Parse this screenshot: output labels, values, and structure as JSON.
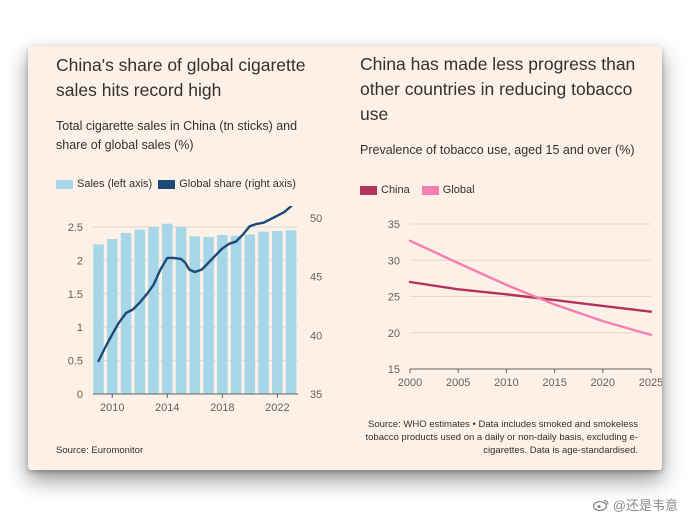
{
  "left": {
    "title": "China's share of global cigarette sales hits record high",
    "subtitle": "Total cigarette sales in China (tn sticks) and share of global sales (%)",
    "legend_sales": "Sales (left axis)",
    "legend_share": "Global share (right axis)",
    "source": "Source: Euromonitor"
  },
  "right": {
    "title": "China has made less progress than other countries in reducing tobacco use",
    "subtitle": "Prevalence of tobacco use, aged 15 and over (%)",
    "legend_china": "China",
    "legend_global": "Global",
    "source": "Source: WHO estimates • Data includes smoked and smokeless tobacco products used on a daily or non-daily basis, excluding e-cigarettes. Data is age-standardised."
  },
  "watermark": "@还是韦意",
  "colors": {
    "background": "#fdf1e7",
    "sales_bar": "#a6d6e7",
    "global_share_line": "#1e4a78",
    "china_line": "#b3335e",
    "global_line": "#f57fb0"
  },
  "chart_data": [
    {
      "type": "bar",
      "categories": [
        "2009",
        "2010",
        "2011",
        "2012",
        "2013",
        "2014",
        "2015",
        "2016",
        "2017",
        "2018",
        "2019",
        "2020",
        "2021",
        "2022",
        "2023"
      ],
      "series": [
        {
          "name": "Sales (left axis)",
          "axis": "left",
          "kind": "bar",
          "values": [
            2.24,
            2.32,
            2.41,
            2.46,
            2.5,
            2.55,
            2.5,
            2.36,
            2.35,
            2.38,
            2.37,
            2.39,
            2.43,
            2.44,
            2.45
          ]
        },
        {
          "name": "Global share (right axis)",
          "axis": "right",
          "kind": "line",
          "x": [
            2009,
            2009.5,
            2010,
            2010.5,
            2011,
            2011.5,
            2012,
            2012.5,
            2013,
            2013.5,
            2014,
            2014.5,
            2015,
            2015.3,
            2015.6,
            2016,
            2016.5,
            2017,
            2017.5,
            2018,
            2018.5,
            2019,
            2019.5,
            2020,
            2020.5,
            2021,
            2021.5,
            2022,
            2022.5,
            2023
          ],
          "values": [
            37.8,
            39.0,
            40.1,
            41.1,
            41.9,
            42.2,
            42.8,
            43.5,
            44.3,
            45.6,
            46.6,
            46.6,
            46.5,
            46.2,
            45.6,
            45.4,
            45.6,
            46.2,
            46.8,
            47.4,
            47.8,
            48.0,
            48.6,
            49.3,
            49.5,
            49.6,
            49.9,
            50.2,
            50.5,
            51.0
          ]
        }
      ],
      "xticks": [
        "2010",
        "2014",
        "2018",
        "2022"
      ],
      "ylim_left": [
        0,
        2.5
      ],
      "yticks_left": [
        "0",
        "0.5",
        "1",
        "1.5",
        "2",
        "2.5"
      ],
      "ylim_right": [
        35,
        50
      ],
      "yticks_right": [
        "35",
        "40",
        "45",
        "50"
      ],
      "grid": true
    },
    {
      "type": "line",
      "x": [
        2000,
        2005,
        2010,
        2015,
        2020,
        2025
      ],
      "series": [
        {
          "name": "China",
          "values": [
            27.0,
            26.0,
            25.3,
            24.5,
            23.7,
            22.9
          ]
        },
        {
          "name": "Global",
          "values": [
            32.7,
            29.6,
            26.6,
            23.9,
            21.6,
            19.7
          ]
        }
      ],
      "xticks": [
        "2000",
        "2005",
        "2010",
        "2015",
        "2020",
        "2025"
      ],
      "ylim": [
        15,
        35
      ],
      "yticks": [
        "15",
        "20",
        "25",
        "30",
        "35"
      ],
      "grid": true
    }
  ]
}
